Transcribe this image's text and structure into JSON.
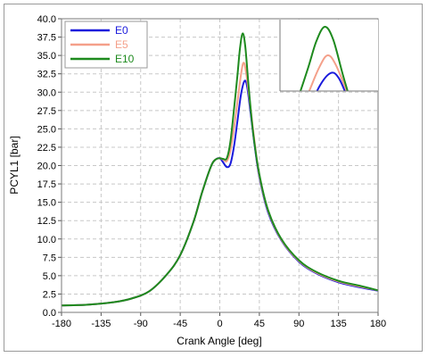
{
  "chart_data": {
    "type": "line",
    "title": "",
    "xlabel": "Crank Angle [deg]",
    "ylabel": "PCYL1 [bar]",
    "xlim": [
      -180,
      180
    ],
    "ylim": [
      0,
      40
    ],
    "xticks": [
      -180,
      -135,
      -90,
      -45,
      0,
      45,
      90,
      135,
      180
    ],
    "yticks": [
      "0.0",
      "2.5",
      "5.0",
      "7.5",
      "10.0",
      "12.5",
      "15.0",
      "17.5",
      "20.0",
      "22.5",
      "25.0",
      "27.5",
      "30.0",
      "32.5",
      "35.0",
      "37.5",
      "40.0"
    ],
    "grid": true,
    "legend_position": "top-left",
    "inset": true,
    "series": [
      {
        "name": "E0",
        "color": "#1a1adc",
        "points": [
          [
            -180,
            0.95
          ],
          [
            -150,
            1.05
          ],
          [
            -120,
            1.4
          ],
          [
            -100,
            1.9
          ],
          [
            -80,
            2.9
          ],
          [
            -60,
            5.2
          ],
          [
            -45,
            7.8
          ],
          [
            -30,
            12.3
          ],
          [
            -20,
            16.4
          ],
          [
            -10,
            19.9
          ],
          [
            -5,
            20.8
          ],
          [
            0,
            21.0
          ],
          [
            4,
            20.4
          ],
          [
            8,
            19.8
          ],
          [
            12,
            20.2
          ],
          [
            16,
            22.5
          ],
          [
            20,
            26.0
          ],
          [
            24,
            29.6
          ],
          [
            28,
            31.5
          ],
          [
            31,
            30.8
          ],
          [
            35,
            27.2
          ],
          [
            40,
            22.4
          ],
          [
            45,
            18.4
          ],
          [
            55,
            13.6
          ],
          [
            70,
            9.8
          ],
          [
            90,
            6.9
          ],
          [
            110,
            5.3
          ],
          [
            135,
            4.1
          ],
          [
            160,
            3.4
          ],
          [
            180,
            2.95
          ]
        ]
      },
      {
        "name": "E5",
        "color": "#f4a08a",
        "points": [
          [
            -180,
            0.95
          ],
          [
            -150,
            1.05
          ],
          [
            -120,
            1.4
          ],
          [
            -100,
            1.9
          ],
          [
            -80,
            2.9
          ],
          [
            -60,
            5.2
          ],
          [
            -45,
            7.8
          ],
          [
            -30,
            12.3
          ],
          [
            -20,
            16.4
          ],
          [
            -10,
            19.9
          ],
          [
            -5,
            20.8
          ],
          [
            0,
            21.0
          ],
          [
            4,
            20.8
          ],
          [
            8,
            20.6
          ],
          [
            12,
            22.0
          ],
          [
            16,
            25.0
          ],
          [
            20,
            28.6
          ],
          [
            24,
            32.3
          ],
          [
            27,
            34.0
          ],
          [
            30,
            32.6
          ],
          [
            35,
            27.8
          ],
          [
            40,
            22.8
          ],
          [
            45,
            18.6
          ],
          [
            55,
            13.8
          ],
          [
            70,
            9.9
          ],
          [
            90,
            7.0
          ],
          [
            110,
            5.4
          ],
          [
            135,
            4.2
          ],
          [
            160,
            3.5
          ],
          [
            180,
            3.0
          ]
        ]
      },
      {
        "name": "E10",
        "color": "#1e8a1e",
        "points": [
          [
            -180,
            0.95
          ],
          [
            -150,
            1.05
          ],
          [
            -120,
            1.4
          ],
          [
            -100,
            1.9
          ],
          [
            -80,
            2.9
          ],
          [
            -60,
            5.2
          ],
          [
            -45,
            7.8
          ],
          [
            -30,
            12.3
          ],
          [
            -20,
            16.4
          ],
          [
            -10,
            19.9
          ],
          [
            -5,
            20.8
          ],
          [
            0,
            21.0
          ],
          [
            4,
            20.9
          ],
          [
            8,
            21.0
          ],
          [
            12,
            23.2
          ],
          [
            16,
            27.5
          ],
          [
            20,
            32.2
          ],
          [
            23,
            36.0
          ],
          [
            26,
            38.0
          ],
          [
            29,
            36.2
          ],
          [
            33,
            30.5
          ],
          [
            38,
            24.4
          ],
          [
            45,
            18.8
          ],
          [
            55,
            13.9
          ],
          [
            70,
            10.0
          ],
          [
            90,
            7.1
          ],
          [
            110,
            5.5
          ],
          [
            135,
            4.3
          ],
          [
            160,
            3.6
          ],
          [
            180,
            3.0
          ]
        ]
      }
    ]
  }
}
